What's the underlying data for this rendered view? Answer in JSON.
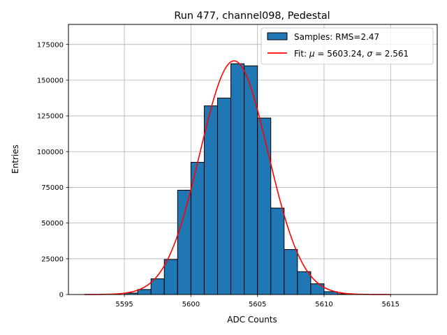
{
  "chart_data": {
    "type": "bar",
    "title": "Run 477, channel098, Pedestal",
    "xlabel": "ADC Counts",
    "ylabel": "Entries",
    "xlim": [
      5590.8,
      5618.5
    ],
    "ylim": [
      0,
      189000
    ],
    "grid": true,
    "legend_position": "top-right",
    "x_ticks": [
      5595,
      5600,
      5605,
      5610,
      5615
    ],
    "y_ticks": [
      0,
      25000,
      50000,
      75000,
      100000,
      125000,
      150000,
      175000
    ],
    "histogram": {
      "name": "Samples: RMS=2.47",
      "color": "#1f77b4",
      "edge_color": "#000000",
      "bin_width": 1,
      "bin_edges_start": 5595,
      "values": [
        1000,
        3500,
        11000,
        24500,
        73000,
        92500,
        132000,
        137500,
        161500,
        160000,
        123500,
        60500,
        31500,
        16000,
        7500,
        2000,
        500
      ]
    },
    "fit": {
      "name": "Fit: μ = 5603.24, σ = 2.561",
      "color": "#ff0000",
      "mu": 5603.24,
      "sigma": 2.561,
      "amplitude": 163500,
      "x_range": [
        5592,
        5615
      ]
    },
    "legend": [
      {
        "label": "Samples: RMS=2.47",
        "kind": "patch",
        "color": "#1f77b4"
      },
      {
        "label_prefix": "Fit: ",
        "mu_symbol": "μ",
        "mu_text": " = 5603.24, ",
        "sigma_symbol": "σ",
        "sigma_text": " = 2.561",
        "kind": "line",
        "color": "#ff0000"
      }
    ]
  }
}
